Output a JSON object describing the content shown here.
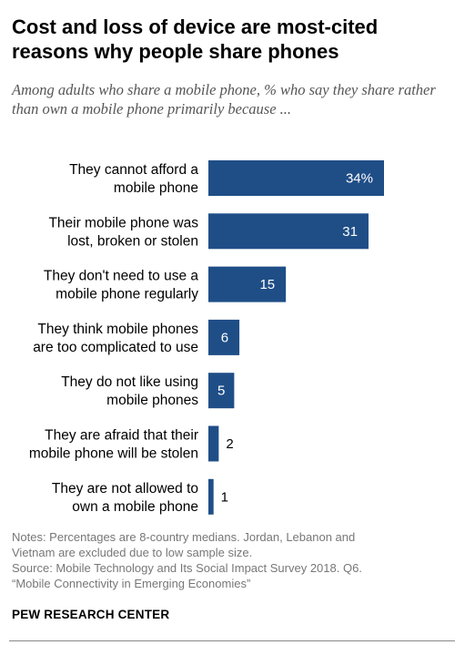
{
  "chart_data": {
    "type": "bar",
    "orientation": "horizontal",
    "title": "Cost and loss of device are most-cited reasons why people share phones",
    "subtitle": "Among adults who share a mobile phone, % who say they share rather than own a mobile phone primarily because ...",
    "categories": [
      [
        "They cannot afford a",
        "mobile phone"
      ],
      [
        "Their mobile phone was",
        "lost, broken or stolen"
      ],
      [
        "They don't need to use a",
        "mobile phone regularly"
      ],
      [
        "They think mobile phones",
        "are too complicated to use"
      ],
      [
        "They do not like using",
        "mobile phones"
      ],
      [
        "They are afraid that their",
        "mobile phone will be stolen"
      ],
      [
        "They are not allowed to",
        "own a mobile phone"
      ]
    ],
    "values": [
      34,
      31,
      15,
      6,
      5,
      2,
      1
    ],
    "value_labels": [
      "34%",
      "31",
      "15",
      "6",
      "5",
      "2",
      "1"
    ],
    "bar_color": "#1f4e87",
    "xlim": [
      0,
      34
    ],
    "grid": false,
    "legend": "none"
  },
  "notes": [
    "Notes: Percentages are 8-country medians. Jordan, Lebanon and",
    "Vietnam are excluded due to low sample size.",
    "Source: Mobile Technology and Its Social Impact Survey 2018. Q6.",
    "“Mobile Connectivity in Emerging Economies”"
  ],
  "brand": "PEW RESEARCH CENTER"
}
